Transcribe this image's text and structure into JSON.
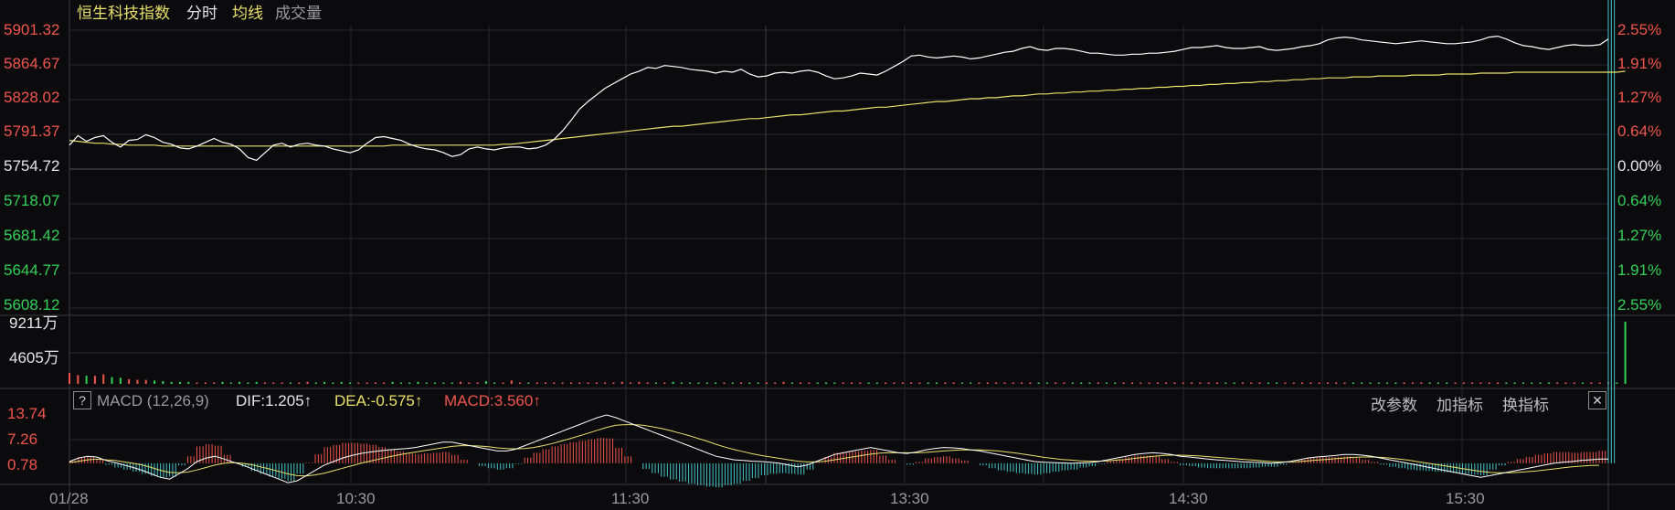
{
  "header": {
    "index_name": "恒生科技指数",
    "tab_intraday": "分时",
    "tab_avg": "均线",
    "tab_volume": "成交量"
  },
  "price_axis_left": [
    "5901.32",
    "5864.67",
    "5828.02",
    "5791.37",
    "5754.72",
    "5718.07",
    "5681.42",
    "5644.77",
    "5608.12"
  ],
  "pct_axis_right": [
    "2.55%",
    "1.91%",
    "1.27%",
    "0.64%",
    "0.00%",
    "0.64%",
    "1.27%",
    "1.91%",
    "2.55%"
  ],
  "volume_axis": [
    "9211万",
    "4605万"
  ],
  "macd": {
    "label": "MACD (12,26,9)",
    "dif": "DIF:1.205↑",
    "dea": "DEA:-0.575↑",
    "macd": "MACD:3.560↑",
    "axis": [
      "13.74",
      "7.26",
      "0.78"
    ],
    "btn_params": "改参数",
    "btn_add": "加指标",
    "btn_switch": "换指标",
    "help": "?",
    "close": "✕"
  },
  "time_axis": [
    "01/28",
    "10:30",
    "11:30",
    "13:30",
    "14:30",
    "15:30"
  ],
  "colors": {
    "up": "#f0554d",
    "down": "#34d058",
    "price_line": "#ffffff",
    "avg_line": "#e8e06a",
    "grid": "#2a2a2e",
    "dea_line": "#e8e06a"
  },
  "chart_data": {
    "type": "line",
    "prev_close": 5754.72,
    "ylim": [
      5608.12,
      5901.32
    ],
    "price": [
      5780,
      5790,
      5784,
      5788,
      5790,
      5783,
      5778,
      5785,
      5786,
      5791,
      5788,
      5783,
      5781,
      5777,
      5776,
      5779,
      5783,
      5787,
      5783,
      5781,
      5776,
      5767,
      5764,
      5772,
      5780,
      5782,
      5778,
      5781,
      5782,
      5780,
      5779,
      5776,
      5774,
      5772,
      5775,
      5782,
      5788,
      5789,
      5787,
      5785,
      5781,
      5778,
      5776,
      5775,
      5772,
      5768,
      5770,
      5776,
      5778,
      5776,
      5775,
      5777,
      5778,
      5778,
      5776,
      5777,
      5780,
      5786,
      5795,
      5806,
      5818,
      5826,
      5833,
      5840,
      5845,
      5850,
      5855,
      5858,
      5862,
      5861,
      5864,
      5863,
      5862,
      5860,
      5859,
      5858,
      5856,
      5858,
      5857,
      5860,
      5855,
      5852,
      5853,
      5856,
      5857,
      5856,
      5858,
      5859,
      5857,
      5853,
      5850,
      5851,
      5853,
      5856,
      5855,
      5854,
      5858,
      5863,
      5868,
      5874,
      5875,
      5873,
      5872,
      5873,
      5874,
      5873,
      5871,
      5872,
      5874,
      5876,
      5878,
      5879,
      5882,
      5884,
      5881,
      5880,
      5882,
      5882,
      5881,
      5879,
      5877,
      5877,
      5876,
      5875,
      5875,
      5876,
      5876,
      5877,
      5877,
      5878,
      5879,
      5881,
      5883,
      5883,
      5884,
      5885,
      5883,
      5882,
      5882,
      5883,
      5884,
      5881,
      5880,
      5881,
      5882,
      5884,
      5885,
      5887,
      5891,
      5893,
      5894,
      5893,
      5891,
      5890,
      5889,
      5888,
      5887,
      5888,
      5889,
      5890,
      5889,
      5888,
      5887,
      5887,
      5888,
      5889,
      5891,
      5894,
      5895,
      5892,
      5888,
      5885,
      5884,
      5882,
      5881,
      5883,
      5885,
      5886,
      5885,
      5885,
      5886,
      5892
    ],
    "avg": [
      5785,
      5784,
      5783,
      5782,
      5782,
      5781,
      5781,
      5780,
      5780,
      5780,
      5780,
      5779,
      5779,
      5779,
      5779,
      5779,
      5779,
      5779,
      5779,
      5779,
      5779,
      5779,
      5779,
      5779,
      5779,
      5779,
      5779,
      5779,
      5779,
      5779,
      5779,
      5779,
      5779,
      5779,
      5779,
      5779,
      5779,
      5779,
      5780,
      5780,
      5780,
      5780,
      5780,
      5780,
      5780,
      5780,
      5780,
      5780,
      5780,
      5780,
      5780,
      5781,
      5781,
      5782,
      5783,
      5784,
      5785,
      5786,
      5787,
      5788,
      5789,
      5790,
      5791,
      5792,
      5793,
      5794,
      5795,
      5796,
      5797,
      5798,
      5799,
      5800,
      5800,
      5801,
      5802,
      5803,
      5804,
      5805,
      5806,
      5807,
      5808,
      5808,
      5809,
      5810,
      5811,
      5812,
      5812,
      5813,
      5814,
      5815,
      5816,
      5816,
      5817,
      5818,
      5819,
      5820,
      5820,
      5821,
      5822,
      5823,
      5824,
      5825,
      5826,
      5826,
      5827,
      5828,
      5829,
      5829,
      5830,
      5830,
      5831,
      5832,
      5832,
      5833,
      5834,
      5834,
      5835,
      5835,
      5836,
      5836,
      5837,
      5837,
      5838,
      5838,
      5839,
      5839,
      5840,
      5840,
      5841,
      5841,
      5842,
      5842,
      5843,
      5843,
      5844,
      5844,
      5845,
      5845,
      5846,
      5846,
      5847,
      5847,
      5848,
      5848,
      5849,
      5849,
      5850,
      5850,
      5851,
      5851,
      5851,
      5852,
      5852,
      5852,
      5853,
      5853,
      5853,
      5853,
      5854,
      5854,
      5854,
      5854,
      5855,
      5855,
      5855,
      5855,
      5856,
      5856,
      5856,
      5856,
      5857,
      5857,
      5857,
      5857,
      5857,
      5857,
      5857,
      5857,
      5857,
      5857,
      5857,
      5857,
      5857,
      5858
    ],
    "volume": [
      16,
      13,
      12,
      12,
      14,
      10,
      9,
      7,
      6,
      6,
      5,
      4,
      3,
      3,
      3,
      2,
      2,
      2,
      3,
      2,
      3,
      2,
      3,
      2,
      2,
      2,
      2,
      2,
      3,
      2,
      3,
      2,
      3,
      2,
      2,
      2,
      2,
      2,
      3,
      2,
      2,
      3,
      2,
      2,
      2,
      2,
      3,
      2,
      2,
      4,
      2,
      2,
      5,
      2,
      2,
      2,
      2,
      2,
      2,
      2,
      2,
      2,
      2,
      2,
      2,
      3,
      2,
      3,
      2,
      2,
      2,
      3,
      2,
      2,
      2,
      2,
      2,
      2,
      2,
      2,
      2,
      2,
      2,
      2,
      3,
      2,
      2,
      2,
      2,
      2,
      2,
      2,
      2,
      2,
      2,
      2,
      2,
      2,
      2,
      2,
      2,
      2,
      2,
      2,
      2,
      2,
      2,
      2,
      2,
      2,
      2,
      2,
      2,
      2,
      2,
      2,
      2,
      2,
      2,
      2,
      2,
      2,
      2,
      2,
      2,
      2,
      2,
      2,
      2,
      2,
      2,
      2,
      2,
      2,
      2,
      2,
      2,
      2,
      2,
      2,
      2,
      2,
      2,
      2,
      2,
      2,
      2,
      2,
      2,
      2,
      2,
      2,
      2,
      2,
      2,
      2,
      2,
      2,
      2,
      2,
      2,
      2,
      2,
      2,
      2,
      2,
      2,
      2,
      2,
      2,
      2,
      2,
      2,
      2,
      2,
      2,
      2,
      2,
      2,
      2,
      2,
      2,
      2,
      92
    ],
    "macd_dif": [
      0.5,
      1.5,
      2.0,
      1.8,
      0.8,
      0.2,
      -0.5,
      -1.2,
      -2.0,
      -3.0,
      -4.0,
      -4.5,
      -3.0,
      -1.5,
      0.5,
      1.5,
      2.0,
      1.2,
      0.3,
      -0.5,
      -1.5,
      -2.5,
      -3.5,
      -4.5,
      -5.5,
      -5.0,
      -3.5,
      -2.0,
      -0.5,
      0.5,
      1.5,
      2.2,
      2.8,
      3.2,
      3.5,
      3.8,
      4.0,
      4.2,
      4.5,
      5.0,
      5.5,
      6.0,
      6.0,
      5.5,
      5.0,
      4.5,
      4.0,
      3.5,
      3.5,
      4.0,
      5.0,
      6.0,
      7.0,
      8.0,
      9.0,
      10.0,
      11.0,
      12.0,
      13.0,
      13.74,
      13.0,
      12.0,
      11.0,
      10.0,
      9.0,
      8.0,
      7.0,
      6.0,
      5.0,
      4.0,
      3.0,
      2.0,
      1.5,
      1.0,
      0.8,
      0.6,
      0.5,
      0.3,
      0.0,
      -0.5,
      -1.0,
      -0.5,
      0.5,
      1.5,
      2.5,
      3.0,
      3.5,
      4.0,
      4.5,
      4.0,
      3.5,
      3.0,
      2.8,
      3.2,
      3.8,
      4.2,
      4.5,
      4.4,
      4.2,
      3.8,
      3.5,
      3.0,
      2.5,
      2.0,
      1.5,
      1.0,
      0.5,
      0.3,
      0.2,
      0.1,
      0.0,
      0.1,
      0.2,
      0.5,
      1.0,
      1.5,
      2.0,
      2.5,
      2.8,
      3.0,
      2.8,
      2.5,
      2.0,
      1.8,
      1.5,
      1.2,
      1.0,
      0.8,
      0.6,
      0.4,
      0.3,
      0.2,
      0.0,
      0.2,
      0.5,
      1.0,
      1.5,
      1.8,
      2.0,
      2.2,
      2.5,
      2.5,
      2.3,
      2.0,
      1.5,
      1.0,
      0.5,
      0.0,
      -0.5,
      -1.0,
      -1.5,
      -2.0,
      -2.5,
      -3.0,
      -3.5,
      -4.0,
      -3.5,
      -3.0,
      -2.5,
      -2.0,
      -1.5,
      -1.0,
      -0.5,
      0.0,
      0.3,
      0.5,
      0.8,
      1.0,
      1.2,
      1.205
    ],
    "macd_dea": [
      0.2,
      0.6,
      1.0,
      1.2,
      1.0,
      0.8,
      0.4,
      0.0,
      -0.5,
      -1.2,
      -2.0,
      -2.6,
      -2.7,
      -2.5,
      -1.9,
      -1.2,
      -0.5,
      0.0,
      0.2,
      0.0,
      -0.4,
      -1.0,
      -1.6,
      -2.3,
      -3.0,
      -3.5,
      -3.6,
      -3.3,
      -2.8,
      -2.1,
      -1.4,
      -0.7,
      0.0,
      0.6,
      1.2,
      1.8,
      2.3,
      2.8,
      3.2,
      3.6,
      4.0,
      4.4,
      4.8,
      5.0,
      5.0,
      4.9,
      4.7,
      4.4,
      4.2,
      4.1,
      4.2,
      4.5,
      5.0,
      5.6,
      6.3,
      7.0,
      7.8,
      8.6,
      9.4,
      10.2,
      10.8,
      11.0,
      11.0,
      10.8,
      10.4,
      9.9,
      9.3,
      8.6,
      7.9,
      7.1,
      6.3,
      5.4,
      4.6,
      3.9,
      3.3,
      2.7,
      2.2,
      1.8,
      1.4,
      1.0,
      0.6,
      0.4,
      0.4,
      0.6,
      1.0,
      1.4,
      1.8,
      2.2,
      2.6,
      2.9,
      3.0,
      3.0,
      3.0,
      3.0,
      3.1,
      3.3,
      3.5,
      3.7,
      3.8,
      3.8,
      3.8,
      3.7,
      3.5,
      3.2,
      2.9,
      2.5,
      2.1,
      1.7,
      1.4,
      1.1,
      0.9,
      0.7,
      0.6,
      0.6,
      0.7,
      0.9,
      1.1,
      1.4,
      1.7,
      2.0,
      2.2,
      2.3,
      2.3,
      2.2,
      2.1,
      1.9,
      1.7,
      1.5,
      1.3,
      1.1,
      0.9,
      0.7,
      0.5,
      0.4,
      0.4,
      0.5,
      0.7,
      0.9,
      1.1,
      1.3,
      1.5,
      1.7,
      1.8,
      1.8,
      1.7,
      1.5,
      1.2,
      0.9,
      0.5,
      0.1,
      -0.3,
      -0.7,
      -1.1,
      -1.5,
      -1.9,
      -2.3,
      -2.6,
      -2.7,
      -2.7,
      -2.6,
      -2.4,
      -2.2,
      -1.9,
      -1.6,
      -1.3,
      -1.0,
      -0.8,
      -0.6,
      -0.575
    ]
  }
}
